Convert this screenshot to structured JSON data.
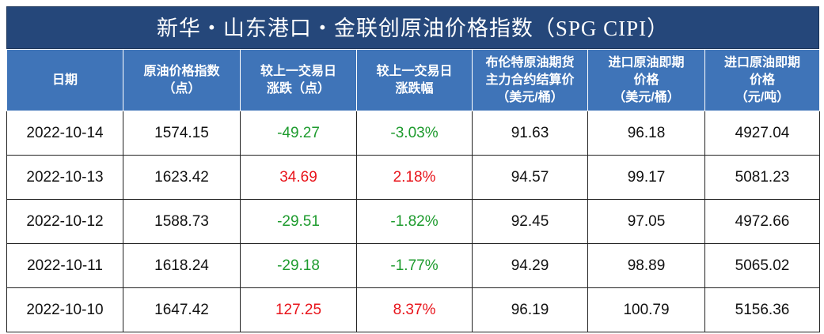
{
  "title": "新华・山东港口・金联创原油价格指数（SPG CIPI）",
  "table": {
    "headers": [
      [
        "日期"
      ],
      [
        "原油价格指数",
        "（点）"
      ],
      [
        "较上一交易日",
        "涨跌（点）"
      ],
      [
        "较上一交易日",
        "涨跌幅"
      ],
      [
        "布伦特原油期货",
        "主力合约结算价",
        "（美元/桶）"
      ],
      [
        "进口原油即期",
        "价格",
        "（美元/桶）"
      ],
      [
        "进口原油即期",
        "价格",
        "（元/吨）"
      ]
    ],
    "rows": [
      [
        "2022-10-14",
        "1574.15",
        "-49.27",
        "-3.03%",
        "91.63",
        "96.18",
        "4927.04"
      ],
      [
        "2022-10-13",
        "1623.42",
        "34.69",
        "2.18%",
        "94.57",
        "99.17",
        "5081.23"
      ],
      [
        "2022-10-12",
        "1588.73",
        "-29.51",
        "-1.82%",
        "92.45",
        "97.05",
        "4972.66"
      ],
      [
        "2022-10-11",
        "1618.24",
        "-29.18",
        "-1.77%",
        "94.29",
        "98.89",
        "5065.02"
      ],
      [
        "2022-10-10",
        "1647.42",
        "127.25",
        "8.37%",
        "96.19",
        "100.79",
        "5156.36"
      ]
    ],
    "up_color": "#e8141b",
    "down_color": "#1e9b2e",
    "change_columns": [
      2,
      3
    ]
  }
}
